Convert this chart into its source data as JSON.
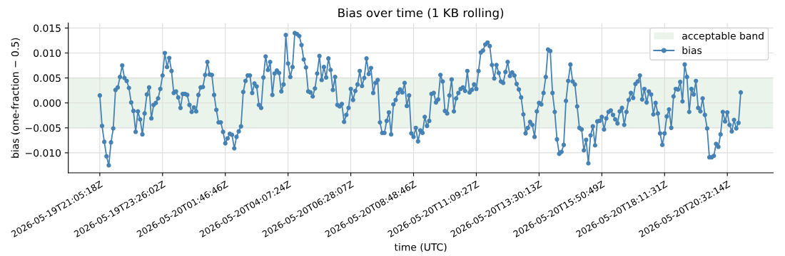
{
  "chart_data": {
    "type": "line",
    "title": "Bias over time (1 KB rolling)",
    "xlabel": "time (UTC)",
    "ylabel": "bias (one-fraction − 0.5)",
    "categories": [
      "2026-05-19T21:05:18Z",
      null,
      null,
      null,
      null,
      null,
      null,
      null,
      null,
      null,
      null,
      null,
      null,
      null,
      null,
      null,
      null,
      null,
      null,
      null,
      null,
      null,
      null,
      null,
      null,
      null,
      null,
      null,
      "2026-05-19T23:26:02Z",
      null,
      null,
      null,
      null,
      null,
      null,
      null,
      null,
      null,
      null,
      null,
      null,
      null,
      null,
      null,
      null,
      null,
      null,
      null,
      null,
      null,
      null,
      null,
      null,
      null,
      null,
      null,
      "2026-05-20T01:46:46Z",
      null,
      null,
      null,
      null,
      null,
      null,
      null,
      null,
      null,
      null,
      null,
      null,
      null,
      null,
      null,
      null,
      null,
      null,
      null,
      null,
      null,
      null,
      null,
      null,
      null,
      null,
      null,
      "2026-05-20T04:07:24Z",
      null,
      null,
      null,
      null,
      null,
      null,
      null,
      null,
      null,
      null,
      null,
      null,
      null,
      null,
      null,
      null,
      null,
      null,
      null,
      null,
      null,
      null,
      null,
      null,
      null,
      null,
      null,
      "2026-05-20T06:28:07Z",
      null,
      null,
      null,
      null,
      null,
      null,
      null,
      null,
      null,
      null,
      null,
      null,
      null,
      null,
      null,
      null,
      null,
      null,
      null,
      null,
      null,
      null,
      null,
      null,
      null,
      null,
      null,
      "2026-05-20T08:48:46Z",
      null,
      null,
      null,
      null,
      null,
      null,
      null,
      null,
      null,
      null,
      null,
      null,
      null,
      null,
      null,
      null,
      null,
      null,
      null,
      null,
      null,
      null,
      null,
      null,
      null,
      null,
      null,
      "2026-05-20T11:09:27Z",
      null,
      null,
      null,
      null,
      null,
      null,
      null,
      null,
      null,
      null,
      null,
      null,
      null,
      null,
      null,
      null,
      null,
      null,
      null,
      null,
      null,
      null,
      null,
      null,
      null,
      null,
      null,
      "2026-05-20T13:30:13Z",
      null,
      null,
      null,
      null,
      null,
      null,
      null,
      null,
      null,
      null,
      null,
      null,
      null,
      null,
      null,
      null,
      null,
      null,
      null,
      null,
      null,
      null,
      null,
      null,
      null,
      null,
      null,
      "2026-05-20T15:50:49Z",
      null,
      null,
      null,
      null,
      null,
      null,
      null,
      null,
      null,
      null,
      null,
      null,
      null,
      null,
      null,
      null,
      null,
      null,
      null,
      null,
      null,
      null,
      null,
      null,
      null,
      null,
      null,
      "2026-05-20T18:11:31Z",
      null,
      null,
      null,
      null,
      null,
      null,
      null,
      null,
      null,
      null,
      null,
      null,
      null,
      null,
      null,
      null,
      null,
      null,
      null,
      null,
      null,
      null,
      null,
      null,
      null,
      null,
      null,
      "2026-05-20T20:32:14Z",
      null,
      null,
      null,
      null,
      null,
      null
    ],
    "series": [
      {
        "name": "bias",
        "color": "#4682b4",
        "values": [
          0.0015,
          -0.0046,
          -0.0078,
          -0.0107,
          -0.0125,
          -0.0079,
          -0.0051,
          0.0026,
          0.0031,
          0.0052,
          0.0075,
          0.005,
          0.0044,
          0.003,
          0.0001,
          -0.0016,
          -0.0058,
          -0.0017,
          -0.0033,
          -0.0063,
          -0.0021,
          0.0017,
          0.0031,
          -0.0031,
          -0.0004,
          0.0,
          0.0009,
          0.0028,
          0.0055,
          0.01,
          0.0072,
          0.009,
          0.0064,
          0.002,
          0.0023,
          0.0011,
          -0.001,
          0.0018,
          0.0018,
          0.0016,
          -0.0004,
          -0.0018,
          -0.0009,
          -0.0017,
          0.0016,
          0.0031,
          0.0032,
          0.0056,
          0.0082,
          0.0057,
          0.0056,
          0.0016,
          -0.0014,
          -0.0039,
          -0.0039,
          -0.0058,
          -0.0081,
          -0.0071,
          -0.0062,
          -0.0064,
          -0.0091,
          -0.0068,
          -0.0057,
          -0.0047,
          0.0022,
          0.0044,
          0.0055,
          0.0055,
          0.002,
          0.0039,
          0.0033,
          -0.0004,
          -0.001,
          0.0051,
          0.0093,
          0.0066,
          0.0082,
          0.0016,
          0.0059,
          0.0065,
          0.006,
          0.0023,
          0.0037,
          0.0136,
          0.0079,
          0.0052,
          0.0072,
          0.014,
          0.0138,
          0.0134,
          0.0116,
          0.0087,
          0.0071,
          0.0023,
          0.0021,
          0.0013,
          0.0029,
          0.0059,
          0.0094,
          0.0046,
          0.0072,
          0.0051,
          0.0089,
          0.0066,
          0.0026,
          0.0052,
          -0.0004,
          -0.0007,
          -0.0002,
          -0.0038,
          -0.0024,
          -0.001,
          0.0028,
          0.0006,
          0.0024,
          0.0037,
          0.0064,
          0.0034,
          0.005,
          0.0089,
          0.0058,
          0.007,
          0.002,
          0.004,
          0.0046,
          -0.0039,
          -0.006,
          -0.006,
          -0.0036,
          -0.0019,
          -0.0063,
          -0.0003,
          0.0006,
          0.002,
          0.0027,
          0.0021,
          0.004,
          -0.0006,
          0.0015,
          -0.0061,
          -0.0068,
          -0.005,
          -0.0077,
          -0.0055,
          -0.006,
          -0.0028,
          -0.0046,
          -0.0036,
          0.0018,
          0.002,
          0.0001,
          0.0007,
          0.0056,
          0.0043,
          -0.0016,
          -0.0021,
          0.0015,
          0.0047,
          -0.0017,
          0.0009,
          0.002,
          0.0028,
          0.0031,
          0.0024,
          0.0064,
          0.0021,
          0.0026,
          0.0037,
          0.0028,
          0.0064,
          0.0101,
          0.0105,
          0.0117,
          0.0121,
          0.0114,
          0.0076,
          0.0049,
          0.0076,
          0.006,
          0.0043,
          0.004,
          0.0062,
          0.0082,
          0.0054,
          0.0061,
          0.0055,
          0.0038,
          0.0027,
          0.0011,
          -0.0023,
          -0.0061,
          -0.005,
          -0.0038,
          -0.0044,
          -0.0068,
          -0.0017,
          0.0,
          -0.0003,
          0.002,
          0.0052,
          0.0107,
          0.0104,
          0.002,
          -0.0018,
          -0.0073,
          -0.0102,
          -0.0098,
          -0.0084,
          0.0004,
          0.0044,
          0.0077,
          0.0043,
          0.0037,
          -0.0007,
          -0.005,
          -0.0053,
          -0.0095,
          -0.0074,
          -0.0121,
          -0.0065,
          -0.0047,
          -0.0085,
          -0.0037,
          -0.0036,
          -0.0028,
          -0.0053,
          -0.0031,
          -0.0018,
          -0.0015,
          -0.0024,
          -0.0033,
          -0.0041,
          -0.0017,
          -0.001,
          -0.0044,
          -0.0018,
          0.0006,
          0.002,
          0.001,
          0.0038,
          0.0043,
          0.0055,
          0.0007,
          0.0028,
          0.0001,
          0.0023,
          0.0017,
          -0.0023,
          0.0,
          -0.0021,
          -0.0061,
          -0.0084,
          -0.0061,
          -0.0027,
          -0.0013,
          -0.005,
          0.0013,
          0.0028,
          0.0027,
          0.0042,
          0.0003,
          0.0077,
          0.0052,
          -0.0018,
          0.0028,
          0.0017,
          0.0044,
          -0.001,
          -0.0017,
          0.0009,
          -0.0024,
          -0.0051,
          -0.0109,
          -0.0109,
          -0.0106,
          -0.0082,
          -0.0088,
          -0.0063,
          -0.0018,
          -0.0037,
          -0.0019,
          -0.0044,
          -0.0057,
          -0.0034,
          -0.0051,
          -0.004,
          0.0021
        ]
      }
    ],
    "bands": [
      {
        "axis": "y",
        "from": -0.005,
        "to": 0.005,
        "label": "acceptable band",
        "color": "#eaf4ea"
      }
    ],
    "ylim": [
      -0.014,
      0.016
    ],
    "yticks": [
      {
        "value": -0.01,
        "label": "−0.010"
      },
      {
        "value": -0.005,
        "label": "−0.005"
      },
      {
        "value": 0.0,
        "label": "0.000"
      },
      {
        "value": 0.005,
        "label": "0.005"
      },
      {
        "value": 0.01,
        "label": "0.010"
      },
      {
        "value": 0.015,
        "label": "0.015"
      }
    ],
    "grid": true,
    "legend": "top right",
    "marker": "circle",
    "line_style": "solid"
  }
}
